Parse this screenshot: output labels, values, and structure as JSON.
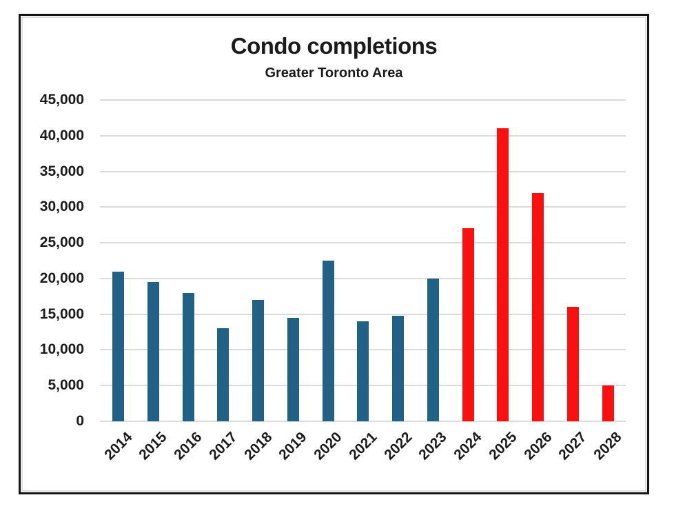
{
  "page": {
    "background": "#ffffff"
  },
  "chart_data": {
    "type": "bar",
    "title": "Condo completions",
    "subtitle": "Greater Toronto Area",
    "categories": [
      "2014",
      "2015",
      "2016",
      "2017",
      "2018",
      "2019",
      "2020",
      "2021",
      "2022",
      "2023",
      "2024",
      "2025",
      "2026",
      "2027",
      "2028"
    ],
    "values": [
      21000,
      19500,
      18000,
      13000,
      17000,
      14500,
      22500,
      14000,
      14800,
      20000,
      27000,
      41000,
      32000,
      16000,
      5000
    ],
    "series_colors": [
      {
        "name": "bars-2014-2023",
        "color": "#206185"
      },
      {
        "name": "bars-2024-2028",
        "color": "#fa100e"
      }
    ],
    "bar_color_index": [
      0,
      0,
      0,
      0,
      0,
      0,
      0,
      0,
      0,
      0,
      1,
      1,
      1,
      1,
      1
    ],
    "xlabel": "",
    "ylabel": "",
    "ylim": [
      0,
      45000
    ],
    "ytick_step": 5000,
    "ytick_labels": [
      "0",
      "5,000",
      "10,000",
      "15,000",
      "20,000",
      "25,000",
      "30,000",
      "35,000",
      "40,000",
      "45,000"
    ],
    "grid": true,
    "legend": "none",
    "gridline_color": "#dadada",
    "text_color": "#1b1b1b",
    "frame_border_color": "#141414"
  }
}
